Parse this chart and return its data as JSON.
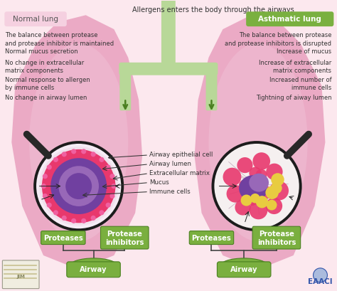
{
  "bg_color": "#fce8ee",
  "lung_color": "#e8a0be",
  "lung_inner_color": "#f0c0d5",
  "title_text": "Allergens enters the body through the airways",
  "title_fontsize": 7.0,
  "normal_label": "Normal lung",
  "asthma_label": "Asthmatic lung",
  "normal_label_bg": "#f5d0e0",
  "asthma_label_bg": "#7ab040",
  "normal_bullets": [
    "The balance between protease\nand protease inhibitor is maintained",
    "Normal mucus secretion",
    "No change in extracellular\nmatrix components",
    "Normal response to allergen\nby immune cells",
    "No change in airway lumen"
  ],
  "asthma_bullets": [
    "The balance between protease\nand protease inhibitors is disrupted",
    "Increase of mucus",
    "Increase of extracellular\nmatrix components",
    "Increased number of\nimmune cells",
    "Tightning of aiway lumen"
  ],
  "magnify_labels": [
    "Airway epithelial cell",
    "Airway lumen",
    "Extracellular matrix",
    "Mucus",
    "Immune cells"
  ],
  "pink_cell": "#e8386d",
  "purple_dark": "#7040a0",
  "purple_light": "#9868b8",
  "yellow_mucus": "#e8cc40",
  "green_color": "#7aaf3f",
  "dark_green": "#4a8020",
  "airway_label": "Airway",
  "protease_label": "Proteases",
  "inhibitor_label": "Protease\ninhibitors",
  "font_size_bullet": 6.0,
  "font_size_magnify": 6.2,
  "font_size_bottom": 7.2,
  "trachea_color": "#b8d898",
  "arrow_color": "#4a8020",
  "handle_color": "#282828",
  "line_color": "#444444"
}
